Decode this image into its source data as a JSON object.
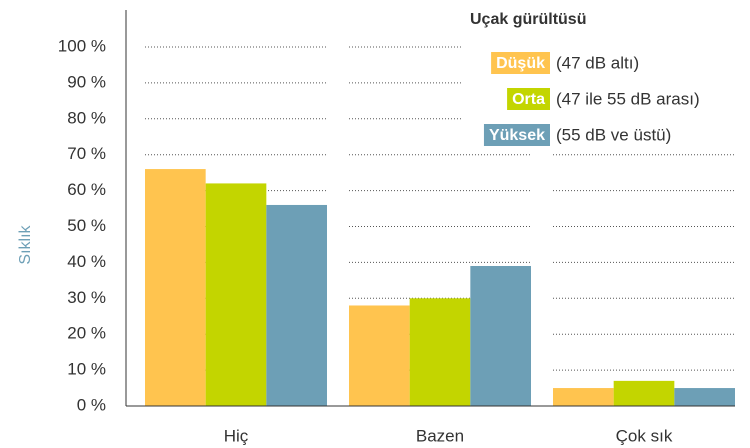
{
  "chart_data": {
    "type": "bar",
    "legend_title": "Uçak gürültüsü",
    "y_label": "Sıklık",
    "categories": [
      "Hiç",
      "Bazen",
      "Çok sık"
    ],
    "series": [
      {
        "name": "Düşük",
        "note": "(47 dB altı)",
        "color": "#ffc44f",
        "values": [
          66,
          28,
          5
        ]
      },
      {
        "name": "Orta",
        "note": "(47 ile 55 dB arası)",
        "color": "#c3d500",
        "values": [
          62,
          30,
          7
        ]
      },
      {
        "name": "Yüksek",
        "note": "(55 dB ve üstü)",
        "color": "#6d9fb6",
        "values": [
          56,
          39,
          5
        ]
      }
    ],
    "ylim": [
      0,
      100
    ],
    "yticks": [
      {
        "value": 0,
        "label": "0 %"
      },
      {
        "value": 10,
        "label": "10 %"
      },
      {
        "value": 20,
        "label": "20 %"
      },
      {
        "value": 30,
        "label": "30 %"
      },
      {
        "value": 40,
        "label": "40 %"
      },
      {
        "value": 50,
        "label": "50 %"
      },
      {
        "value": 60,
        "label": "60 %"
      },
      {
        "value": 70,
        "label": "70 %"
      },
      {
        "value": 80,
        "label": "80 %"
      },
      {
        "value": 90,
        "label": "90 %"
      },
      {
        "value": 100,
        "label": "100 %"
      }
    ],
    "grid": true
  }
}
